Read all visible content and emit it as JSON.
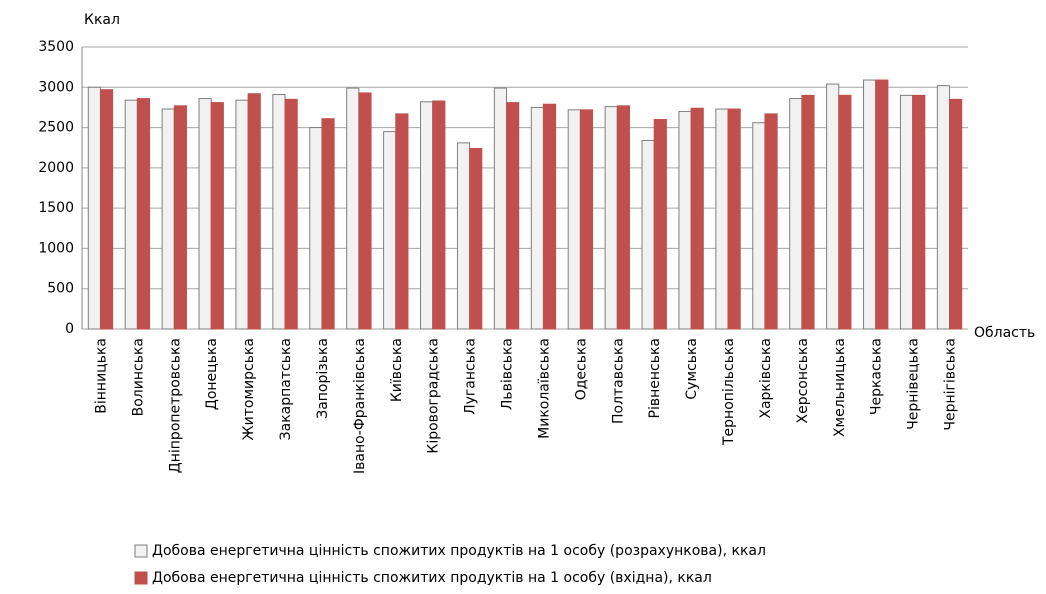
{
  "chart_data": {
    "type": "bar",
    "y_axis_label": "Ккал",
    "x_axis_label": "Область",
    "categories": [
      "Вінницька",
      "Волинська",
      "Дніпропетровська",
      "Донецька",
      "Житомирська",
      "Закарпатська",
      "Запорізька",
      "Івано-Франківська",
      "Київська",
      "Кіровоградська",
      "Луганська",
      "Львівська",
      "Миколаївська",
      "Одеська",
      "Полтавська",
      "Рівненська",
      "Сумська",
      "Тернопільська",
      "Харківська",
      "Херсонська",
      "Хмельницька",
      "Черкаська",
      "Чернівецька",
      "Чернігівська"
    ],
    "series": [
      {
        "name": "Добова енергетична цінність спожитих продуктів на 1 особу (розрахункова), ккал",
        "color": "#f2f2f2",
        "values": [
          3000,
          2840,
          2730,
          2860,
          2840,
          2910,
          2500,
          2990,
          2450,
          2820,
          2310,
          2990,
          2750,
          2720,
          2760,
          2340,
          2700,
          2730,
          2560,
          2860,
          3040,
          3090,
          2900,
          3020
        ]
      },
      {
        "name": "Добова енергетична цінність спожитих продуктів на 1 особу (вхідна), ккал",
        "color": "#c0504d",
        "values": [
          2970,
          2860,
          2770,
          2810,
          2920,
          2850,
          2610,
          2930,
          2670,
          2830,
          2240,
          2810,
          2790,
          2720,
          2770,
          2600,
          2740,
          2730,
          2670,
          2900,
          2900,
          3090,
          2900,
          2850
        ]
      }
    ],
    "ylim": [
      0,
      3500
    ],
    "yticks": [
      0,
      500,
      1000,
      1500,
      2000,
      2500,
      3000,
      3500
    ],
    "grid": true,
    "legend": "bottom"
  }
}
